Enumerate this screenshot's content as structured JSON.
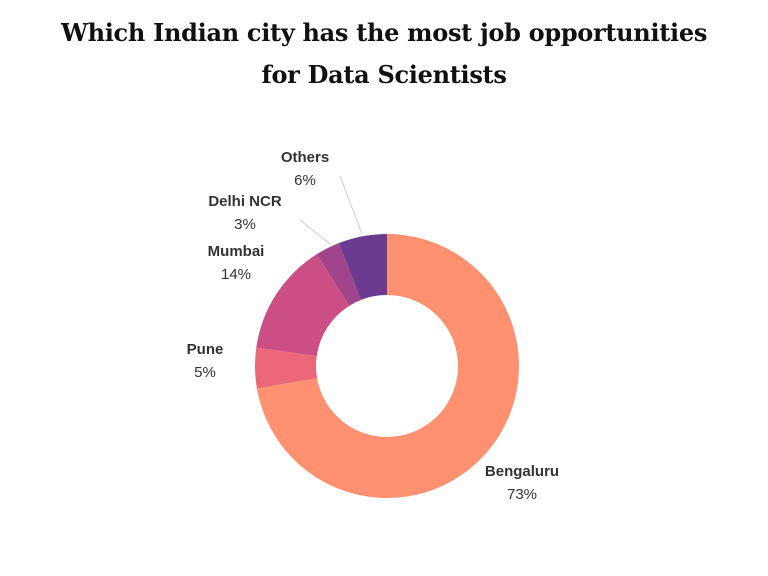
{
  "title_line1": "Which Indian city has the most job opportunities",
  "title_line2": "for Data Scientists",
  "chart_data": {
    "type": "pie",
    "variant": "donut",
    "title": "Which Indian city has the most job opportunities for Data Scientists",
    "unit": "%",
    "slices": [
      {
        "label": "Bengaluru",
        "value": 73,
        "display": "73%",
        "color": "#FF9170"
      },
      {
        "label": "Pune",
        "value": 5,
        "display": "5%",
        "color": "#EC6878"
      },
      {
        "label": "Mumbai",
        "value": 14,
        "display": "14%",
        "color": "#CB4F84"
      },
      {
        "label": "Delhi NCR",
        "value": 3,
        "display": "3%",
        "color": "#A1448C"
      },
      {
        "label": "Others",
        "value": 6,
        "display": "6%",
        "color": "#6A3B90"
      }
    ],
    "legend": "none",
    "labels": "outside with leader lines"
  }
}
